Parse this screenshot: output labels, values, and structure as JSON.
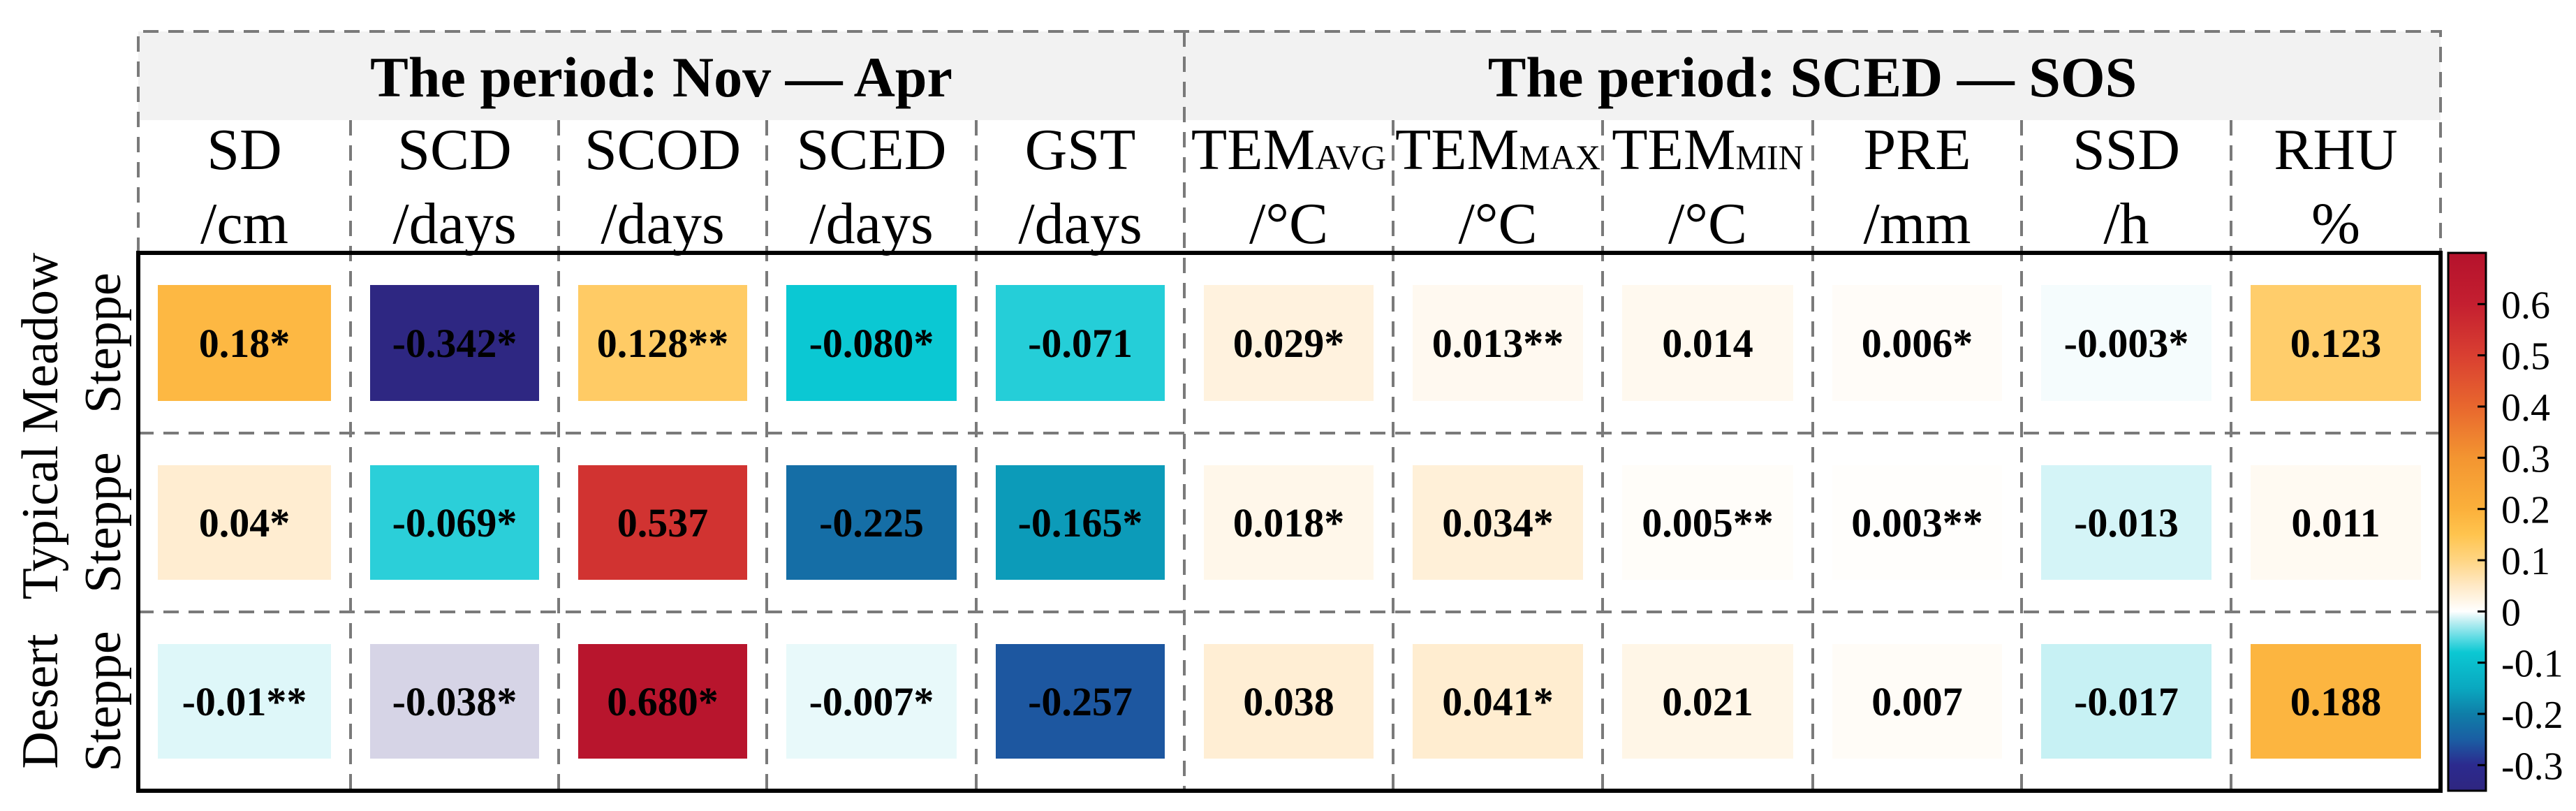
{
  "chart_data": {
    "type": "heatmap",
    "groups": [
      {
        "label": "The period: Nov — Apr",
        "span": 5
      },
      {
        "label": "The period: SCED — SOS",
        "span": 6
      }
    ],
    "columns": [
      {
        "name": "SD",
        "sub": "",
        "unit": "/cm"
      },
      {
        "name": "SCD",
        "sub": "",
        "unit": "/days"
      },
      {
        "name": "SCOD",
        "sub": "",
        "unit": "/days"
      },
      {
        "name": "SCED",
        "sub": "",
        "unit": "/days"
      },
      {
        "name": "GST",
        "sub": "",
        "unit": "/days"
      },
      {
        "name": "TEM",
        "sub": "AVG",
        "unit": "/°C"
      },
      {
        "name": "TEM",
        "sub": "MAX",
        "unit": "/°C"
      },
      {
        "name": "TEM",
        "sub": "MIN",
        "unit": "/°C"
      },
      {
        "name": "PRE",
        "sub": "",
        "unit": "/mm"
      },
      {
        "name": "SSD",
        "sub": "",
        "unit": "/h"
      },
      {
        "name": "RHU",
        "sub": "",
        "unit": "%"
      }
    ],
    "rows": [
      {
        "line1": "Meadow",
        "line2": "Steppe",
        "values": [
          0.18,
          -0.342,
          0.128,
          -0.08,
          -0.071,
          0.029,
          0.013,
          0.014,
          0.006,
          -0.003,
          0.123
        ],
        "labels": [
          "0.18*",
          "-0.342*",
          "0.128**",
          "-0.080*",
          "-0.071",
          "0.029*",
          "0.013**",
          "0.014",
          "0.006*",
          "-0.003*",
          "0.123"
        ]
      },
      {
        "line1": "Typical",
        "line2": "Steppe",
        "values": [
          0.04,
          -0.069,
          0.537,
          -0.225,
          -0.165,
          0.018,
          0.034,
          0.005,
          0.003,
          -0.013,
          0.011
        ],
        "labels": [
          "0.04*",
          "-0.069*",
          "0.537",
          "-0.225",
          "-0.165*",
          "0.018*",
          "0.034*",
          "0.005**",
          "0.003**",
          "-0.013",
          "0.011"
        ]
      },
      {
        "line1": "Desert",
        "line2": "Steppe",
        "values": [
          -0.01,
          -0.038,
          0.68,
          -0.007,
          -0.257,
          0.038,
          0.041,
          0.021,
          0.007,
          -0.017,
          0.188
        ],
        "labels": [
          "-0.01**",
          "-0.038*",
          "0.680*",
          "-0.007*",
          "-0.257",
          "0.038",
          "0.041*",
          "0.021",
          "0.007",
          "-0.017",
          "0.188"
        ]
      }
    ],
    "colorbar": {
      "range": [
        -0.35,
        0.7
      ],
      "ticks": [
        0.6,
        0.5,
        0.4,
        0.3,
        0.2,
        0.1,
        0,
        -0.1,
        -0.2,
        -0.3
      ],
      "tick_labels": [
        "0.6",
        "0.5",
        "0.4",
        "0.3",
        "0.2",
        "0.1",
        "0",
        "-0.1",
        "-0.2",
        "-0.3"
      ],
      "stops": [
        {
          "v": -0.35,
          "c": "#2e2680"
        },
        {
          "v": -0.3,
          "c": "#2c2a8e"
        },
        {
          "v": -0.25,
          "c": "#1a5ea3"
        },
        {
          "v": -0.2,
          "c": "#0f7ea8"
        },
        {
          "v": -0.15,
          "c": "#0aa8c0"
        },
        {
          "v": -0.08,
          "c": "#0bc8d3"
        },
        {
          "v": -0.05,
          "c": "#62dce4"
        },
        {
          "v": -0.02,
          "c": "#bdeef2"
        },
        {
          "v": 0,
          "c": "#ffffff"
        },
        {
          "v": 0.02,
          "c": "#fff6e8"
        },
        {
          "v": 0.05,
          "c": "#ffe9c6"
        },
        {
          "v": 0.1,
          "c": "#ffd583"
        },
        {
          "v": 0.15,
          "c": "#ffc44e"
        },
        {
          "v": 0.2,
          "c": "#fbb03b"
        },
        {
          "v": 0.3,
          "c": "#f39531"
        },
        {
          "v": 0.4,
          "c": "#e8672e"
        },
        {
          "v": 0.5,
          "c": "#d93f31"
        },
        {
          "v": 0.6,
          "c": "#c41f30"
        },
        {
          "v": 0.7,
          "c": "#b5122c"
        }
      ]
    },
    "special_colors": [
      {
        "row": 2,
        "col": 1,
        "color": "#d6d4e6"
      }
    ]
  }
}
